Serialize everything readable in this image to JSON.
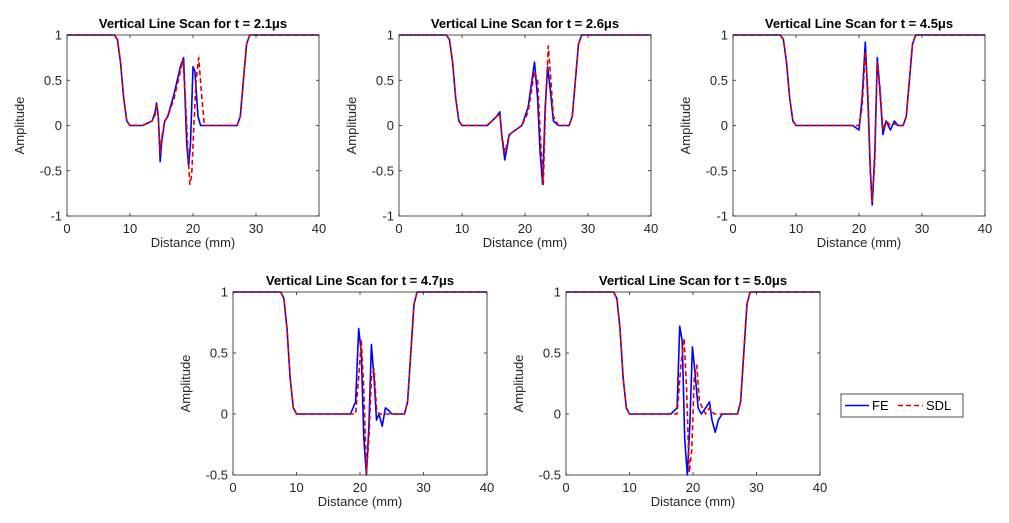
{
  "colors": {
    "fe": "#0000ff",
    "sdl": "#e00000",
    "axis": "#262626",
    "background": "#ffffff"
  },
  "legend": {
    "items": [
      {
        "label": "FE",
        "color": "#0000ff",
        "style": "solid"
      },
      {
        "label": "SDL",
        "color": "#e00000",
        "style": "dashed"
      }
    ],
    "placement": "right"
  },
  "chart_data": [
    {
      "type": "line",
      "title": "Vertical Line Scan for t = 2.1μs",
      "xlabel": "Distance (mm)",
      "ylabel": "Amplitude",
      "xlim": [
        0,
        40
      ],
      "ylim": [
        -1,
        1
      ],
      "xticks": [
        "0",
        "10",
        "20",
        "30",
        "40"
      ],
      "yticks": [
        "-1",
        "-0.5",
        "0",
        "0.5",
        "1"
      ],
      "series": [
        {
          "name": "FE",
          "x": [
            0,
            7.5,
            8,
            8.5,
            9,
            9.5,
            10,
            12,
            13.5,
            14,
            14.2,
            14.5,
            14.8,
            15,
            15.5,
            16,
            17,
            18,
            18.5,
            19,
            19.3,
            19.6,
            20,
            20.3,
            20.8,
            21.2,
            22,
            27,
            27.5,
            28,
            28.5,
            29,
            30,
            40
          ],
          "y": [
            1,
            1,
            0.95,
            0.7,
            0.3,
            0.05,
            0,
            0,
            0.05,
            0.15,
            0.25,
            0.1,
            -0.4,
            -0.2,
            0.05,
            0.1,
            0.35,
            0.65,
            0.75,
            -0.2,
            -0.45,
            -0.2,
            0.65,
            0.6,
            0.1,
            0,
            0,
            0,
            0.1,
            0.5,
            0.9,
            1,
            1,
            1
          ]
        },
        {
          "name": "SDL",
          "x": [
            0,
            7.5,
            8,
            8.5,
            9,
            9.5,
            10,
            12,
            13.5,
            14,
            14.2,
            14.5,
            14.8,
            15,
            15.5,
            16,
            17,
            18,
            18.4,
            18.8,
            19.2,
            19.5,
            19.8,
            20.2,
            20.5,
            20.9,
            21.3,
            21.8,
            22.5,
            27,
            27.5,
            28,
            28.5,
            29,
            30,
            40
          ],
          "y": [
            1,
            1,
            0.95,
            0.7,
            0.3,
            0.05,
            0,
            0,
            0.05,
            0.12,
            0.25,
            0.1,
            -0.3,
            -0.15,
            0.05,
            0.1,
            0.3,
            0.6,
            0.72,
            0.3,
            -0.3,
            -0.65,
            -0.55,
            0.1,
            0.5,
            0.75,
            0.4,
            0,
            0,
            0,
            0.1,
            0.5,
            0.9,
            1,
            1,
            1
          ]
        }
      ]
    },
    {
      "type": "line",
      "title": "Vertical Line Scan for t = 2.6μs",
      "xlabel": "Distance (mm)",
      "ylabel": "Amplitude",
      "xlim": [
        0,
        40
      ],
      "ylim": [
        -1,
        1
      ],
      "xticks": [
        "0",
        "10",
        "20",
        "30",
        "40"
      ],
      "yticks": [
        "-1",
        "-0.5",
        "0",
        "0.5",
        "1"
      ],
      "series": [
        {
          "name": "FE",
          "x": [
            0,
            7.5,
            8,
            8.5,
            9,
            9.5,
            10,
            14,
            15.5,
            16,
            16.3,
            16.8,
            17.5,
            18.5,
            19.5,
            20.5,
            21.5,
            22,
            22.4,
            22.8,
            23.2,
            23.6,
            24,
            24.5,
            25.3,
            27,
            27.5,
            28,
            28.5,
            29,
            30,
            40
          ],
          "y": [
            1,
            1,
            0.95,
            0.7,
            0.3,
            0.05,
            0,
            0,
            0.1,
            0.15,
            -0.1,
            -0.38,
            -0.1,
            -0.05,
            0,
            0.2,
            0.7,
            0.3,
            -0.3,
            -0.65,
            0.2,
            0.65,
            0.4,
            0.05,
            0,
            0,
            0.1,
            0.5,
            0.9,
            1,
            1,
            1
          ]
        },
        {
          "name": "SDL",
          "x": [
            0,
            7.5,
            8,
            8.5,
            9,
            9.5,
            10,
            14,
            15.5,
            16,
            16.3,
            16.8,
            17.5,
            18.5,
            19.5,
            20.5,
            21.5,
            22,
            22.5,
            22.9,
            23.3,
            23.7,
            24,
            24.5,
            25.3,
            27,
            27.5,
            28,
            28.5,
            29,
            30,
            40
          ],
          "y": [
            1,
            1,
            0.95,
            0.7,
            0.3,
            0.05,
            0,
            0,
            0.1,
            0.12,
            -0.1,
            -0.3,
            -0.1,
            -0.05,
            0,
            0.15,
            0.6,
            0.5,
            -0.2,
            -0.65,
            0.3,
            0.88,
            0.6,
            0.1,
            0,
            0,
            0.1,
            0.5,
            0.9,
            1,
            1,
            1
          ]
        }
      ]
    },
    {
      "type": "line",
      "title": "Vertical Line Scan for t = 4.5μs",
      "xlabel": "Distance (mm)",
      "ylabel": "Amplitude",
      "xlim": [
        0,
        40
      ],
      "ylim": [
        -1,
        1
      ],
      "xticks": [
        "0",
        "10",
        "20",
        "30",
        "40"
      ],
      "yticks": [
        "-1",
        "-0.5",
        "0",
        "0.5",
        "1"
      ],
      "series": [
        {
          "name": "FE",
          "x": [
            0,
            7.5,
            8,
            8.5,
            9,
            9.5,
            10,
            19,
            20,
            20.5,
            21,
            21.4,
            21.8,
            22.1,
            22.5,
            22.9,
            23.3,
            23.8,
            24.3,
            25,
            25.6,
            26.2,
            27,
            27.5,
            28,
            28.5,
            29,
            30,
            40
          ],
          "y": [
            1,
            1,
            0.95,
            0.7,
            0.3,
            0.05,
            0,
            0,
            -0.05,
            0.3,
            0.92,
            0.3,
            -0.5,
            -0.88,
            -0.3,
            0.75,
            0.4,
            -0.1,
            0.05,
            -0.05,
            0.05,
            0,
            0,
            0.1,
            0.5,
            0.9,
            1,
            1,
            1
          ]
        },
        {
          "name": "SDL",
          "x": [
            0,
            7.5,
            8,
            8.5,
            9,
            9.5,
            10,
            19,
            20,
            20.5,
            21,
            21.4,
            21.8,
            22.1,
            22.5,
            22.9,
            23.3,
            23.8,
            24.3,
            25,
            25.6,
            26.2,
            27,
            27.5,
            28,
            28.5,
            29,
            30,
            40
          ],
          "y": [
            1,
            1,
            0.95,
            0.7,
            0.3,
            0.05,
            0,
            0,
            0,
            0.2,
            0.82,
            0.4,
            -0.45,
            -0.85,
            -0.4,
            0.7,
            0.45,
            -0.05,
            0.05,
            0,
            0.02,
            0,
            0,
            0.1,
            0.5,
            0.9,
            1,
            1,
            1
          ]
        }
      ]
    },
    {
      "type": "line",
      "title": "Vertical Line Scan for t = 4.7μs",
      "xlabel": "Distance (mm)",
      "ylabel": "Amplitude",
      "xlim": [
        0,
        40
      ],
      "ylim": [
        -0.5,
        1
      ],
      "xticks": [
        "0",
        "10",
        "20",
        "30",
        "40"
      ],
      "yticks": [
        "-0.5",
        "0",
        "0.5",
        "1"
      ],
      "series": [
        {
          "name": "FE",
          "x": [
            0,
            7.5,
            8,
            8.5,
            9,
            9.5,
            10,
            18.5,
            19.3,
            19.8,
            20.2,
            20.6,
            21,
            21.4,
            21.8,
            22.2,
            22.6,
            23,
            23.5,
            24,
            24.5,
            25,
            25.6,
            27,
            27.5,
            28,
            28.5,
            29,
            30,
            40
          ],
          "y": [
            1,
            1,
            0.95,
            0.7,
            0.3,
            0.05,
            0,
            0,
            0.1,
            0.7,
            0.5,
            -0.2,
            -0.5,
            -0.1,
            0.57,
            0.3,
            -0.05,
            0,
            -0.1,
            0.05,
            0.03,
            0,
            0,
            0,
            0.1,
            0.5,
            0.9,
            1,
            1,
            1
          ]
        },
        {
          "name": "SDL",
          "x": [
            0,
            7.5,
            8,
            8.5,
            9,
            9.5,
            10,
            18.5,
            19.3,
            19.8,
            20.2,
            20.6,
            21,
            21.4,
            21.8,
            22.2,
            22.6,
            23,
            24,
            27,
            27.5,
            28,
            28.5,
            29,
            30,
            40
          ],
          "y": [
            1,
            1,
            0.95,
            0.7,
            0.3,
            0.05,
            0,
            0,
            0,
            0.3,
            0.6,
            0.2,
            -0.48,
            -0.2,
            0.3,
            0.37,
            0.05,
            0,
            0,
            0,
            0.1,
            0.5,
            0.9,
            1,
            1,
            1
          ]
        }
      ]
    },
    {
      "type": "line",
      "title": "Vertical Line Scan for t = 5.0μs",
      "xlabel": "Distance (mm)",
      "ylabel": "Amplitude",
      "xlim": [
        0,
        40
      ],
      "ylim": [
        -0.5,
        1
      ],
      "xticks": [
        "0",
        "10",
        "20",
        "30",
        "40"
      ],
      "yticks": [
        "-0.5",
        "0",
        "0.5",
        "1"
      ],
      "series": [
        {
          "name": "FE",
          "x": [
            0,
            7.5,
            8,
            8.5,
            9,
            9.5,
            10,
            16.5,
            17.5,
            17.9,
            18.3,
            18.7,
            19.1,
            19.5,
            19.9,
            20.3,
            20.8,
            21.3,
            22,
            22.6,
            23,
            23.5,
            24,
            24.6,
            25.5,
            27,
            27.5,
            28,
            28.5,
            29,
            30,
            40
          ],
          "y": [
            1,
            1,
            0.95,
            0.7,
            0.3,
            0.05,
            0,
            0,
            0.05,
            0.72,
            0.6,
            -0.2,
            -0.5,
            -0.1,
            0.55,
            0.35,
            0.05,
            0,
            0.05,
            0.1,
            -0.05,
            -0.15,
            -0.05,
            0,
            0,
            0,
            0.1,
            0.5,
            0.9,
            1,
            1,
            1
          ]
        },
        {
          "name": "SDL",
          "x": [
            0,
            7.5,
            8,
            8.5,
            9,
            9.5,
            10,
            16.5,
            17.5,
            18.1,
            18.6,
            19,
            19.4,
            19.8,
            20.2,
            20.6,
            21,
            22,
            22.6,
            23.3,
            24,
            27,
            27.5,
            28,
            28.5,
            29,
            30,
            40
          ],
          "y": [
            1,
            1,
            0.95,
            0.7,
            0.3,
            0.05,
            0,
            0,
            0,
            0.4,
            0.62,
            0.2,
            -0.48,
            -0.3,
            0.3,
            0.4,
            0.1,
            0,
            0.05,
            0,
            0,
            0,
            0.1,
            0.5,
            0.9,
            1,
            1,
            1
          ]
        }
      ]
    }
  ]
}
